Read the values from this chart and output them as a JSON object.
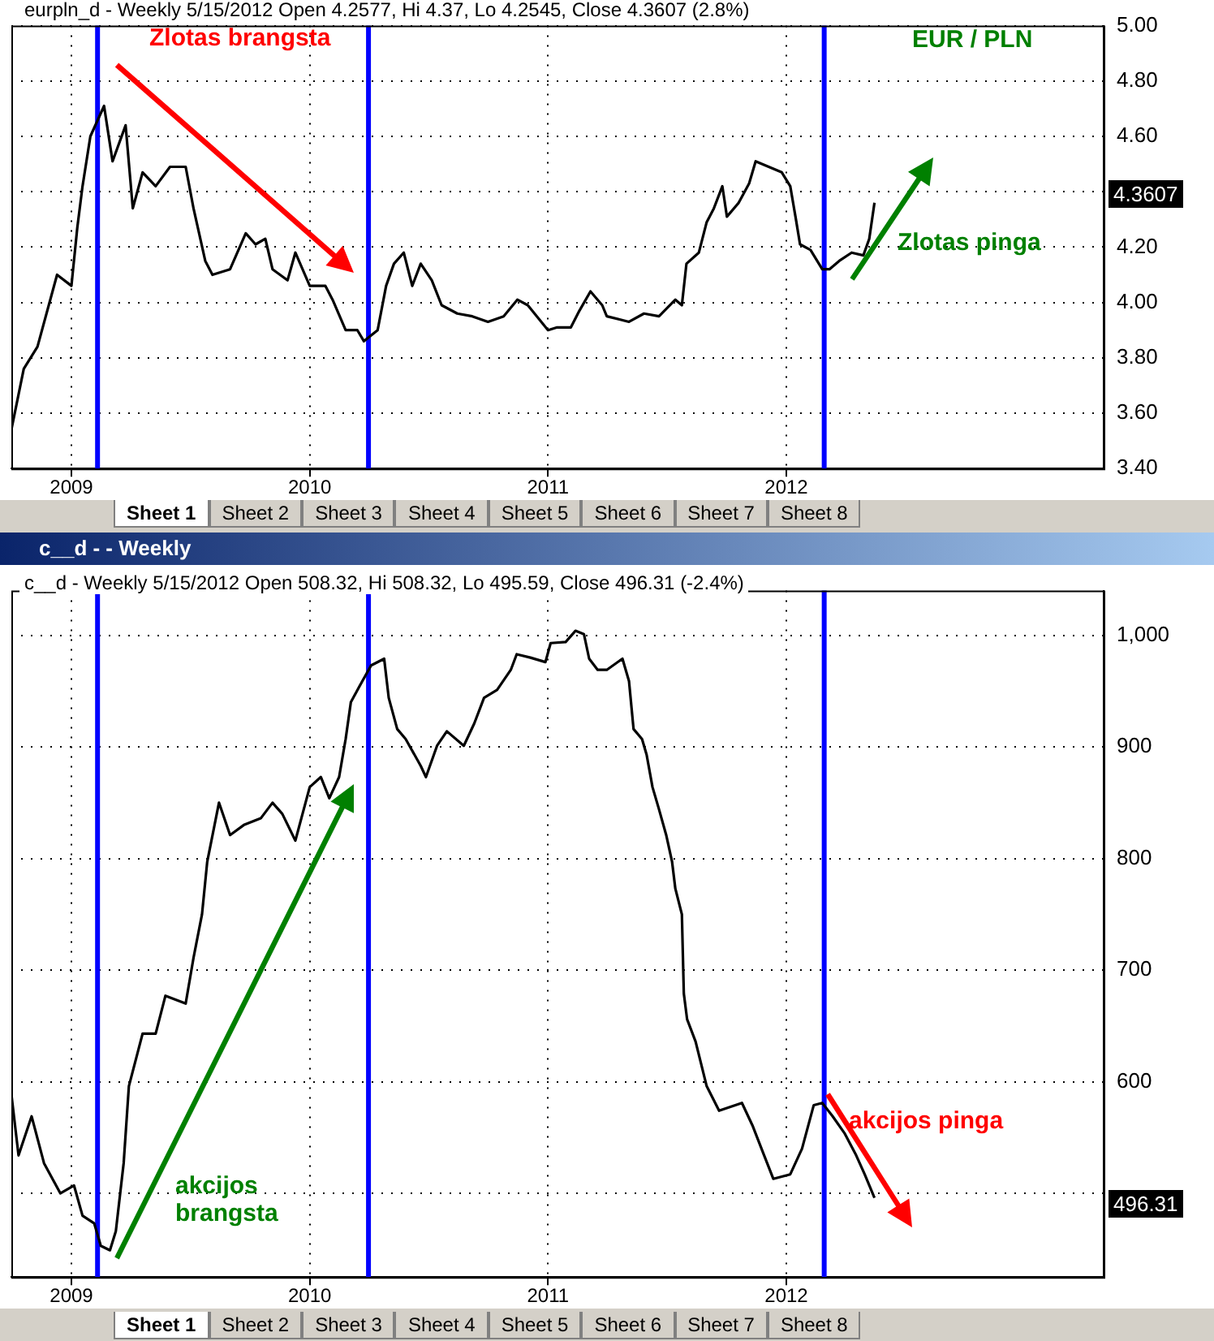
{
  "chart_data": [
    {
      "type": "line",
      "title": "eurpln_d - Weekly 5/15/2012 Open 4.2577, Hi 4.37, Lo 4.2545, Close 4.3607 (2.8%)",
      "x": [
        "2008-10-01",
        "2008-10-20",
        "2008-11-10",
        "2008-12-10",
        "2009-01-01",
        "2009-01-10",
        "2009-01-18",
        "2009-01-30",
        "2009-02-20",
        "2009-03-05",
        "2009-03-25",
        "2009-04-05",
        "2009-04-20",
        "2009-05-10",
        "2009-06-01",
        "2009-06-25",
        "2009-07-07",
        "2009-07-25",
        "2009-08-05",
        "2009-09-01",
        "2009-09-25",
        "2009-10-10",
        "2009-10-25",
        "2009-11-05",
        "2009-11-28",
        "2009-12-10",
        "2010-01-01",
        "2010-01-25",
        "2010-02-05",
        "2010-02-25",
        "2010-03-15",
        "2010-03-25",
        "2010-04-15",
        "2010-04-28",
        "2010-05-10",
        "2010-05-25",
        "2010-06-07",
        "2010-06-20",
        "2010-07-07",
        "2010-07-22",
        "2010-08-15",
        "2010-09-07",
        "2010-10-01",
        "2010-10-25",
        "2010-11-15",
        "2010-12-01",
        "2011-01-01",
        "2011-01-15",
        "2011-02-05",
        "2011-02-18",
        "2011-03-07",
        "2011-03-25",
        "2011-04-01",
        "2011-05-05",
        "2011-05-28",
        "2011-06-20",
        "2011-07-15",
        "2011-07-25",
        "2011-08-01",
        "2011-08-20",
        "2011-09-01",
        "2011-09-12",
        "2011-09-25",
        "2011-10-02",
        "2011-10-20",
        "2011-11-05",
        "2011-11-15",
        "2011-12-05",
        "2011-12-25",
        "2012-01-07",
        "2012-01-15",
        "2012-01-22",
        "2012-02-07",
        "2012-02-25",
        "2012-03-07",
        "2012-03-22",
        "2012-04-10",
        "2012-04-28",
        "2012-05-07",
        "2012-05-15"
      ],
      "series": [
        {
          "color": "#000000",
          "values": [
            3.54,
            3.76,
            3.84,
            4.1,
            4.06,
            4.27,
            4.42,
            4.6,
            4.71,
            4.51,
            4.64,
            4.34,
            4.47,
            4.42,
            4.49,
            4.49,
            4.34,
            4.15,
            4.1,
            4.12,
            4.25,
            4.21,
            4.23,
            4.12,
            4.08,
            4.18,
            4.06,
            4.06,
            4.01,
            3.9,
            3.9,
            3.86,
            3.9,
            4.06,
            4.14,
            4.18,
            4.06,
            4.14,
            4.08,
            3.99,
            3.96,
            3.95,
            3.93,
            3.95,
            4.01,
            3.99,
            3.9,
            3.91,
            3.91,
            3.97,
            4.04,
            3.99,
            3.95,
            3.93,
            3.96,
            3.95,
            4.01,
            3.99,
            4.14,
            4.18,
            4.29,
            4.34,
            4.42,
            4.31,
            4.36,
            4.43,
            4.51,
            4.49,
            4.47,
            4.42,
            4.31,
            4.21,
            4.19,
            4.12,
            4.12,
            4.15,
            4.18,
            4.17,
            4.23,
            4.36
          ]
        }
      ],
      "xlim": [
        "2008-10-01",
        "2013-05-01"
      ],
      "xticks": [
        {
          "value": "2009",
          "label": "2009"
        },
        {
          "value": "2010",
          "label": "2010"
        },
        {
          "value": "2011",
          "label": "2011"
        },
        {
          "value": "2012",
          "label": "2012"
        }
      ],
      "ylim": [
        3.4,
        5.0
      ],
      "yticks": [
        {
          "value": 3.4,
          "label": "3.40"
        },
        {
          "value": 3.6,
          "label": "3.60"
        },
        {
          "value": 3.8,
          "label": "3.80"
        },
        {
          "value": 4.0,
          "label": "4.00"
        },
        {
          "value": 4.2,
          "label": "4.20"
        },
        {
          "value": 4.4,
          "label": null
        },
        {
          "value": 4.6,
          "label": "4.60"
        },
        {
          "value": 4.8,
          "label": "4.80"
        },
        {
          "value": 5.0,
          "label": "5.00"
        }
      ],
      "grid": true,
      "legend": false,
      "marker": "none",
      "line_style": "solid",
      "ref_lines": [
        {
          "axis": "x",
          "value": "2009-02-10",
          "color": "#0000ff"
        },
        {
          "axis": "x",
          "value": "2010-04-01",
          "color": "#0000ff"
        },
        {
          "axis": "x",
          "value": "2012-02-28",
          "color": "#0000ff"
        }
      ],
      "annotations": [
        "Zlotas brangsta",
        "EUR / PLN",
        "Zlotas pinga",
        "4.3607",
        "Sheet 1",
        "Sheet 2",
        "Sheet 3",
        "Sheet 4",
        "Sheet 5",
        "Sheet 6",
        "Sheet 7",
        "Sheet 8"
      ]
    },
    {
      "type": "line",
      "title": "c__d - - Weekly",
      "subtitle": "c__d - Weekly 5/15/2012 Open 508.32, Hi 508.32, Lo 495.59, Close 496.31 (-2.4%)",
      "x": [
        "2008-10-01",
        "2008-10-12",
        "2008-11-01",
        "2008-11-20",
        "2008-12-15",
        "2009-01-05",
        "2009-01-18",
        "2009-02-05",
        "2009-02-15",
        "2009-03-01",
        "2009-03-10",
        "2009-03-22",
        "2009-03-30",
        "2009-04-20",
        "2009-05-10",
        "2009-05-25",
        "2009-06-25",
        "2009-07-07",
        "2009-07-20",
        "2009-07-28",
        "2009-08-15",
        "2009-09-01",
        "2009-09-22",
        "2009-10-18",
        "2009-11-05",
        "2009-11-20",
        "2009-12-10",
        "2010-01-01",
        "2010-01-18",
        "2010-01-31",
        "2010-02-15",
        "2010-02-25",
        "2010-03-05",
        "2010-03-18",
        "2010-04-05",
        "2010-04-25",
        "2010-05-02",
        "2010-05-15",
        "2010-05-28",
        "2010-06-20",
        "2010-06-28",
        "2010-07-15",
        "2010-07-30",
        "2010-08-25",
        "2010-09-10",
        "2010-09-25",
        "2010-10-15",
        "2010-11-05",
        "2010-11-14",
        "2010-12-05",
        "2010-12-28",
        "2011-01-05",
        "2011-01-28",
        "2011-02-12",
        "2011-02-25",
        "2011-03-05",
        "2011-03-18",
        "2011-04-01",
        "2011-04-25",
        "2011-05-05",
        "2011-05-12",
        "2011-05-25",
        "2011-06-01",
        "2011-06-10",
        "2011-06-20",
        "2011-07-01",
        "2011-07-10",
        "2011-07-15",
        "2011-07-25",
        "2011-07-28",
        "2011-08-02",
        "2011-08-15",
        "2011-09-01",
        "2011-09-20",
        "2011-10-25",
        "2011-11-10",
        "2011-11-28",
        "2011-12-12",
        "2012-01-07",
        "2012-01-25",
        "2012-02-12",
        "2012-02-25",
        "2012-03-12",
        "2012-03-30",
        "2012-04-17",
        "2012-04-30",
        "2012-05-15"
      ],
      "series": [
        {
          "color": "#000000",
          "values": [
            589,
            534,
            569,
            527,
            500,
            507,
            480,
            473,
            453,
            449,
            466,
            527,
            596,
            643,
            643,
            677,
            670,
            711,
            750,
            797,
            850,
            821,
            830,
            836,
            850,
            840,
            816,
            864,
            873,
            854,
            873,
            907,
            940,
            954,
            973,
            979,
            944,
            916,
            907,
            883,
            873,
            901,
            914,
            901,
            921,
            944,
            951,
            969,
            983,
            980,
            976,
            993,
            994,
            1004,
            1001,
            979,
            969,
            969,
            979,
            959,
            916,
            907,
            893,
            864,
            844,
            821,
            797,
            773,
            750,
            679,
            656,
            636,
            596,
            574,
            581,
            561,
            534,
            513,
            517,
            540,
            579,
            581,
            569,
            554,
            534,
            517,
            496
          ]
        }
      ],
      "xlim": [
        "2008-10-01",
        "2013-05-01"
      ],
      "xticks": [
        {
          "value": "2009",
          "label": "2009"
        },
        {
          "value": "2010",
          "label": "2010"
        },
        {
          "value": "2011",
          "label": "2011"
        },
        {
          "value": "2012",
          "label": "2012"
        }
      ],
      "ylim": [
        425,
        1040
      ],
      "yticks": [
        {
          "value": 500,
          "label": null
        },
        600,
        700,
        800,
        900,
        {
          "value": 1000,
          "label": "1,000"
        }
      ],
      "grid": true,
      "legend": false,
      "marker": "none",
      "line_style": "solid",
      "ref_lines": [
        {
          "axis": "x",
          "value": "2009-02-10",
          "color": "#0000ff"
        },
        {
          "axis": "x",
          "value": "2010-04-01",
          "color": "#0000ff"
        },
        {
          "axis": "x",
          "value": "2012-02-28",
          "color": "#0000ff"
        }
      ],
      "annotations": [
        "akcijos brangsta",
        "akcijos pinga",
        "496.31",
        "Sheet 1",
        "Sheet 2",
        "Sheet 3",
        "Sheet 4",
        "Sheet 5",
        "Sheet 6",
        "Sheet 7",
        "Sheet 8"
      ]
    }
  ]
}
